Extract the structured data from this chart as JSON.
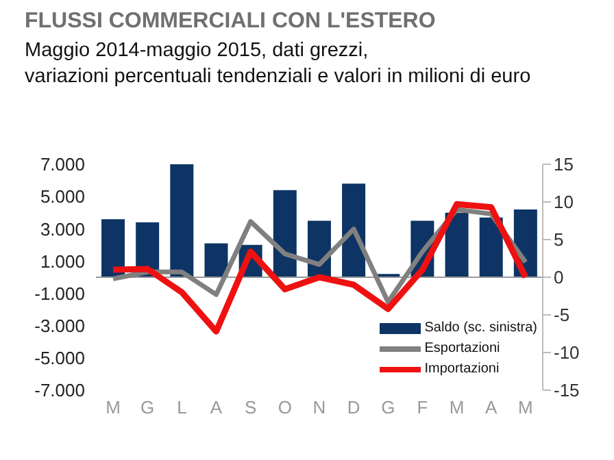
{
  "chart_data": {
    "type": "bar",
    "title": "FLUSSI COMMERCIALI CON L'ESTERO",
    "subtitle": "Maggio 2014-maggio 2015, dati grezzi,\nvariazioni percentuali tendenziali e valori in milioni di euro",
    "categories": [
      "M",
      "G",
      "L",
      "A",
      "S",
      "O",
      "N",
      "D",
      "G",
      "F",
      "M",
      "A",
      "M"
    ],
    "series": [
      {
        "name": "Saldo (sc. sinistra)",
        "color": "#0d3464",
        "values": [
          3600,
          3400,
          7000,
          2100,
          2000,
          5400,
          3500,
          5800,
          200,
          3500,
          4000,
          3700,
          4200
        ]
      },
      {
        "name": "Esportazioni",
        "type": "line",
        "axis": "y2",
        "color": "#808080",
        "values": [
          -0.2,
          0.7,
          0.7,
          -2.3,
          7.4,
          3.1,
          1.7,
          6.4,
          -3.3,
          3.4,
          9.0,
          8.4,
          2.0
        ]
      },
      {
        "name": "Importazioni",
        "type": "line",
        "axis": "y2",
        "color": "#ee1111",
        "values": [
          1.0,
          1.1,
          -2.0,
          -7.2,
          3.4,
          -1.6,
          0,
          -1.0,
          -4.2,
          1.0,
          9.7,
          9.3,
          0
        ]
      }
    ],
    "ylim": [
      -7000,
      7000
    ],
    "yticks": [
      {
        "value": 7000,
        "label": "7.000"
      },
      {
        "value": 5000,
        "label": "5.000"
      },
      {
        "value": 3000,
        "label": "3.000"
      },
      {
        "value": 1000,
        "label": "1.000"
      },
      {
        "value": -1000,
        "label": "-1.000"
      },
      {
        "value": -3000,
        "label": "-3.000"
      },
      {
        "value": -5000,
        "label": "-5.000"
      },
      {
        "value": -7000,
        "label": "-7.000"
      }
    ],
    "y2lim": [
      -15,
      15
    ],
    "y2ticks": [
      15,
      10,
      5,
      0,
      -5,
      -10,
      -15
    ],
    "ref_lines": [
      {
        "axis": "y",
        "value": 0,
        "color": "#999999"
      }
    ],
    "legend": "bottom right"
  }
}
